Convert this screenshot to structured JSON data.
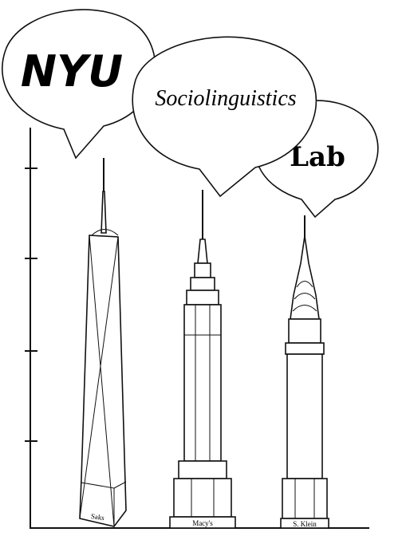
{
  "logo": {
    "line1": "NYU",
    "line2": "Sociolinguistics",
    "line3": "Lab"
  },
  "buildings": [
    "Saks",
    "Macy's",
    "S. Klein"
  ]
}
